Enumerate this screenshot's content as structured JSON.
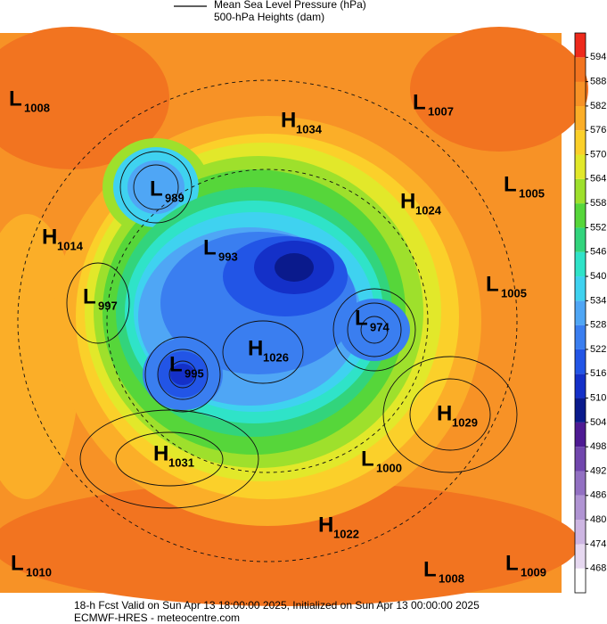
{
  "header": {
    "line_legend": "Mean Sea Level Pressure (hPa)",
    "fill_legend": "500-hPa Heights (dam)"
  },
  "colorbar": {
    "lim": [
      462,
      600
    ],
    "ticks": [
      468,
      474,
      480,
      486,
      492,
      498,
      504,
      510,
      516,
      522,
      528,
      534,
      540,
      546,
      552,
      558,
      564,
      570,
      576,
      582,
      588,
      594
    ],
    "colors": [
      "#ffffff",
      "#e6d8f0",
      "#cdb6e2",
      "#b094d3",
      "#9270c2",
      "#7147ad",
      "#4e1a93",
      "#0a1a8c",
      "#1430c8",
      "#2255e6",
      "#3a7ef0",
      "#4fa6f5",
      "#3fd2f0",
      "#2fe3c8",
      "#32d47c",
      "#56d63a",
      "#9ee02c",
      "#e2e82a",
      "#fbd02a",
      "#fbae28",
      "#f79226",
      "#f27420",
      "#ee2a1c"
    ]
  },
  "centers": [
    {
      "letter": "L",
      "value": 1008
    },
    {
      "letter": "H",
      "value": 1034
    },
    {
      "letter": "L",
      "value": 1007
    },
    {
      "letter": "L",
      "value": 989
    },
    {
      "letter": "H",
      "value": 1024
    },
    {
      "letter": "L",
      "value": 1005
    },
    {
      "letter": "H",
      "value": 1014
    },
    {
      "letter": "L",
      "value": 993
    },
    {
      "letter": "L",
      "value": 997
    },
    {
      "letter": "L",
      "value": 1005
    },
    {
      "letter": "L",
      "value": 974
    },
    {
      "letter": "H",
      "value": 1026
    },
    {
      "letter": "L",
      "value": 995
    },
    {
      "letter": "H",
      "value": 1029
    },
    {
      "letter": "H",
      "value": 1031
    },
    {
      "letter": "L",
      "value": 1000
    },
    {
      "letter": "H",
      "value": 1022
    },
    {
      "letter": "L",
      "value": 1010
    },
    {
      "letter": "L",
      "value": 1008
    },
    {
      "letter": "L",
      "value": 1009
    }
  ],
  "footer": {
    "line1": "18-h Fcst Valid on Sun Apr 13 18:00:00 2025, Initialized on Sun Apr 13 00:00:00 2025",
    "line2": "ECMWF-HRES  - meteocentre.com"
  }
}
